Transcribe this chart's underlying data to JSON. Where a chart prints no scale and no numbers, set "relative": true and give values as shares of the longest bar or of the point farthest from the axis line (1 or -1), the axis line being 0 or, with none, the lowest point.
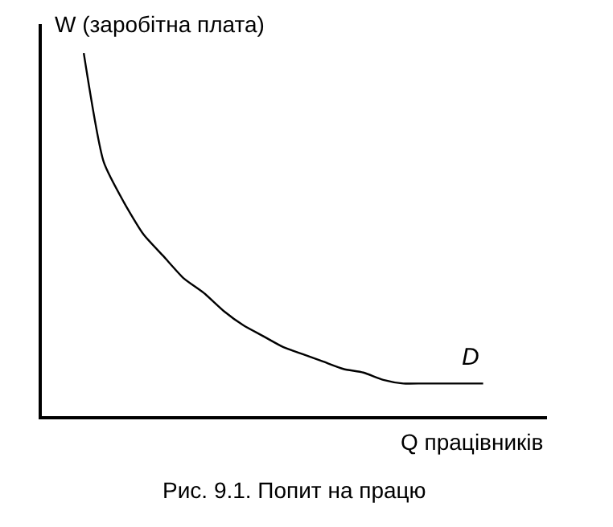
{
  "chart_data": {
    "type": "line",
    "relative": true,
    "xlabel": "Q працівників",
    "ylabel": "W (заробітна плата)",
    "categories": [
      null,
      null,
      null,
      null,
      null,
      null,
      null,
      null,
      null,
      null,
      null,
      null,
      null,
      null,
      null,
      null,
      null,
      null,
      null,
      null,
      null
    ],
    "series": [
      {
        "name": "D",
        "color": "#000000",
        "values": [
          1,
          0.7,
          0.59,
          0.5,
          0.44,
          0.38,
          0.34,
          0.29,
          0.25,
          0.22,
          0.19,
          0.17,
          0.15,
          0.13,
          0.12,
          0.1,
          0.09,
          0.09,
          0.09,
          0.09,
          0.09
        ]
      }
    ],
    "annotations": [
      "Рис. 9.1. Попит на працю"
    ],
    "legend": false,
    "marker": "none",
    "line_style": "solid"
  }
}
